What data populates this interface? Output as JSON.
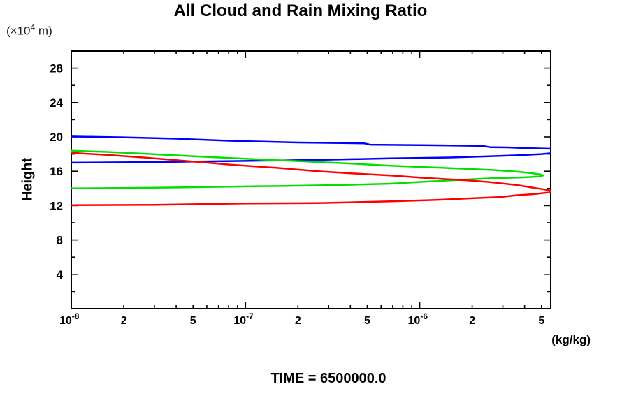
{
  "title": "All Cloud and Rain Mixing Ratio",
  "y_axis": {
    "label": "Height",
    "unit_prefix": "(×10",
    "unit_sup": "4",
    "unit_suffix": " m)",
    "tick_labels": [
      4,
      8,
      12,
      16,
      20,
      24,
      28
    ],
    "minor_tick_step": 2
  },
  "x_axis": {
    "unit": "(kg/kg)",
    "labels": [
      {
        "v": 1e-08,
        "text": "10",
        "sup": "-8"
      },
      {
        "v": 2e-08,
        "text": "2"
      },
      {
        "v": 5e-08,
        "text": "5"
      },
      {
        "v": 1e-07,
        "text": "10",
        "sup": "-7"
      },
      {
        "v": 2e-07,
        "text": "2"
      },
      {
        "v": 5e-07,
        "text": "5"
      },
      {
        "v": 1e-06,
        "text": "10",
        "sup": "-6"
      },
      {
        "v": 2e-06,
        "text": "2"
      },
      {
        "v": 5e-06,
        "text": "5"
      }
    ]
  },
  "footer": {
    "time_label": "TIME = 6500000.0"
  },
  "chart_data": {
    "type": "line",
    "title": "All Cloud and Rain Mixing Ratio",
    "xlabel": "(kg/kg)",
    "ylabel": "Height (×10^4 m)",
    "x_scale": "log",
    "xlim": [
      1e-08,
      5.65e-06
    ],
    "ylim": [
      0,
      30
    ],
    "grid": false,
    "legend": false,
    "annotation": "TIME = 6500000.0",
    "axis_color": "#000000",
    "series": [
      {
        "name": "blue-profile",
        "color": "#0000ff",
        "branches": [
          [
            [
              1e-08,
              20.05
            ],
            [
              2e-08,
              19.95
            ],
            [
              4e-08,
              19.8
            ],
            [
              8e-08,
              19.55
            ],
            [
              2e-07,
              19.35
            ],
            [
              4.8e-07,
              19.25
            ],
            [
              5.2e-07,
              19.1
            ],
            [
              1e-06,
              19.05
            ],
            [
              2.3e-06,
              18.95
            ],
            [
              2.55e-06,
              18.8
            ],
            [
              3.2e-06,
              18.78
            ],
            [
              4e-06,
              18.7
            ],
            [
              5.65e-06,
              18.62
            ]
          ],
          [
            [
              1e-08,
              17.0
            ],
            [
              4e-08,
              17.1
            ],
            [
              1e-07,
              17.2
            ],
            [
              3e-07,
              17.35
            ],
            [
              6.8e-07,
              17.5
            ],
            [
              1.5e-06,
              17.6
            ],
            [
              2.5e-06,
              17.75
            ],
            [
              3.6e-06,
              17.85
            ],
            [
              5e-06,
              18.0
            ],
            [
              5.65e-06,
              18.1
            ]
          ]
        ]
      },
      {
        "name": "green-profile",
        "color": "#00e000",
        "branches": [
          [
            [
              1e-08,
              18.4
            ],
            [
              1.6e-08,
              18.25
            ],
            [
              2.6e-08,
              18.05
            ],
            [
              4.5e-08,
              17.8
            ],
            [
              8e-08,
              17.55
            ],
            [
              1.3e-07,
              17.35
            ],
            [
              2.2e-07,
              17.15
            ],
            [
              4e-07,
              16.9
            ],
            [
              6.8e-07,
              16.65
            ],
            [
              1.2e-06,
              16.45
            ],
            [
              2e-06,
              16.25
            ],
            [
              2.6e-06,
              16.15
            ],
            [
              3.6e-06,
              15.95
            ],
            [
              4.5e-06,
              15.75
            ],
            [
              5e-06,
              15.6
            ],
            [
              5.1e-06,
              15.5
            ],
            [
              5e-06,
              15.42
            ],
            [
              4.5e-06,
              15.35
            ],
            [
              3.8e-06,
              15.28
            ],
            [
              2.6e-06,
              15.18
            ],
            [
              1.8e-06,
              15.02
            ],
            [
              1.1e-06,
              14.8
            ],
            [
              6.8e-07,
              14.55
            ],
            [
              3.5e-07,
              14.4
            ],
            [
              1.8e-07,
              14.3
            ],
            [
              8e-08,
              14.2
            ],
            [
              3e-08,
              14.08
            ],
            [
              1e-08,
              14.0
            ]
          ]
        ]
      },
      {
        "name": "red-profile",
        "color": "#ff0000",
        "branches": [
          [
            [
              1e-08,
              18.15
            ],
            [
              1.6e-08,
              17.9
            ],
            [
              2.6e-08,
              17.6
            ],
            [
              3.7e-08,
              17.35
            ],
            [
              6e-08,
              17.0
            ],
            [
              8.4e-08,
              16.75
            ],
            [
              1.5e-07,
              16.4
            ],
            [
              2.6e-07,
              16.0
            ],
            [
              4.5e-07,
              15.7
            ],
            [
              6.8e-07,
              15.5
            ],
            [
              1.1e-06,
              15.2
            ],
            [
              1.85e-06,
              14.95
            ],
            [
              2.5e-06,
              14.75
            ],
            [
              3.6e-06,
              14.4
            ],
            [
              4.6e-06,
              14.05
            ],
            [
              5.3e-06,
              13.85
            ],
            [
              5.65e-06,
              13.75
            ]
          ],
          [
            [
              1e-08,
              12.05
            ],
            [
              3e-08,
              12.1
            ],
            [
              1e-07,
              12.25
            ],
            [
              2.6e-07,
              12.3
            ],
            [
              6.8e-07,
              12.5
            ],
            [
              1.2e-06,
              12.65
            ],
            [
              2e-06,
              12.85
            ],
            [
              2.9e-06,
              13.0
            ],
            [
              3.6e-06,
              13.2
            ],
            [
              4.6e-06,
              13.35
            ],
            [
              5.65e-06,
              13.55
            ]
          ]
        ]
      }
    ]
  }
}
